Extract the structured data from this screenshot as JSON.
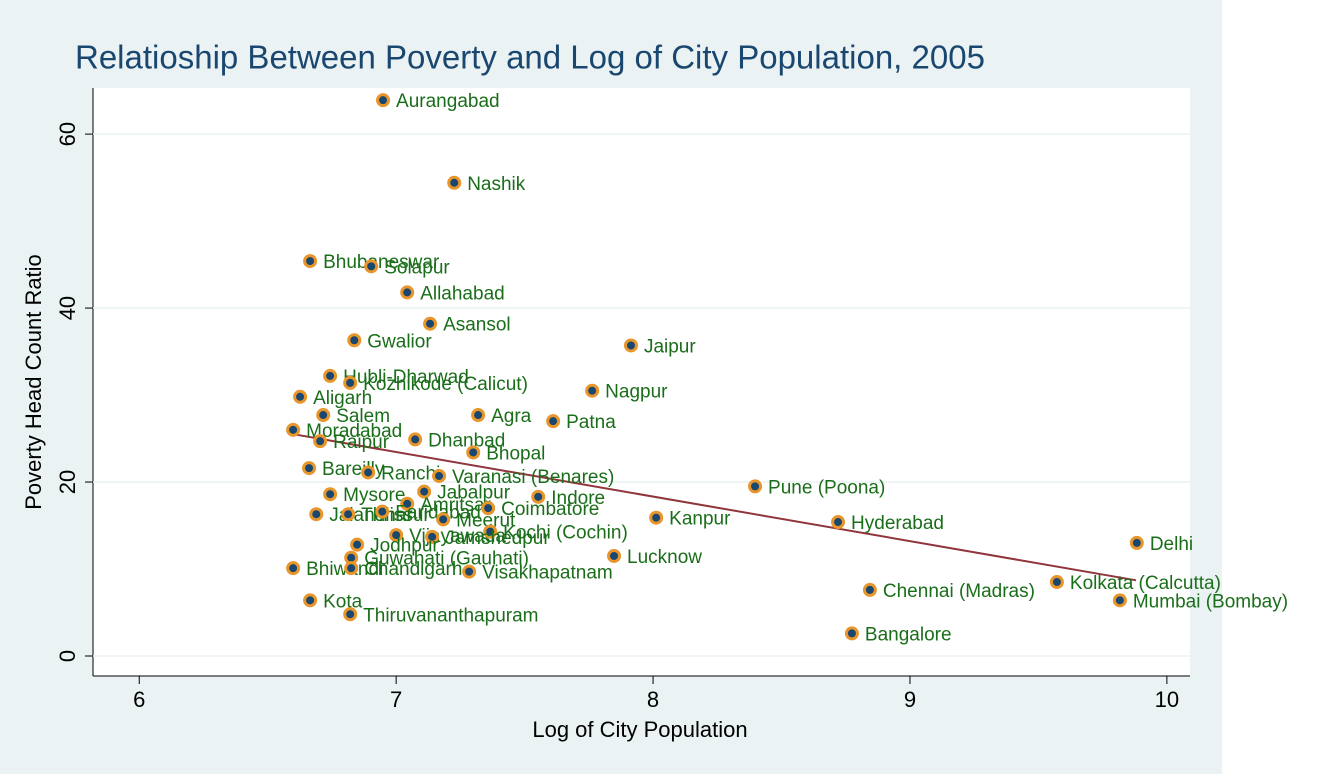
{
  "chart_data": {
    "type": "scatter",
    "title": "Relatioship Between Poverty and Log of City Population, 2005",
    "x_label": "Log of City Population",
    "y_label": "Poverty Head Count Ratio",
    "xlim": [
      5.82,
      10.09
    ],
    "ylim": [
      -2.3,
      65.3
    ],
    "xticks": [
      6,
      7,
      8,
      9,
      10
    ],
    "yticks": [
      0,
      20,
      40,
      60
    ],
    "grid": true,
    "marker_color": "#1a476f",
    "marker_edge_color": "#e8952a",
    "label_color": "#1a6e1a",
    "labels": [
      "Aurangabad",
      "Nashik",
      "Bhubaneswar",
      "Solapur",
      "Allahabad",
      "Asansol",
      "Gwalior",
      "Jaipur",
      "Hubli-Dharwad",
      "Kozhikode (Calicut)",
      "Nagpur",
      "Aligarh",
      "Salem",
      "Agra",
      "Patna",
      "Moradabad",
      "Raipur",
      "Dhanbad",
      "Bhopal",
      "Bareilly",
      "Ranchi",
      "Varanasi (Benares)",
      "Pune (Poona)",
      "Mysore",
      "Jabalpur",
      "Indore",
      "Amritsar",
      "Coimbatore",
      "Jalandhar",
      "Thrissur",
      "Faridabad",
      "Meerut",
      "Kanpur",
      "Hyderabad",
      "Vijayawada",
      "Kochi (Cochin)",
      "Jamshedpur",
      "Jodhpur",
      "Delhi",
      "Guwahati (Gauhati)",
      "Lucknow",
      "Bhiwandi",
      "Chandigarh",
      "Visakhapatnam",
      "Kolkata (Calcutta)",
      "Chennai (Madras)",
      "Mumbai (Bombay)",
      "Kota",
      "Thiruvananthapuram",
      "Bangalore"
    ],
    "x": [
      6.949,
      7.226,
      6.665,
      6.903,
      7.043,
      7.132,
      6.837,
      7.914,
      6.743,
      6.821,
      7.763,
      6.626,
      6.716,
      7.319,
      7.611,
      6.599,
      6.704,
      7.074,
      7.3,
      6.661,
      6.891,
      7.167,
      8.397,
      6.743,
      7.109,
      7.553,
      7.043,
      7.358,
      6.689,
      6.813,
      6.946,
      7.183,
      8.012,
      8.72,
      7.0,
      7.366,
      7.14,
      6.848,
      9.883,
      6.825,
      7.848,
      6.599,
      6.825,
      7.284,
      9.572,
      8.844,
      9.817,
      6.665,
      6.821,
      8.774
    ],
    "y": [
      63.9,
      54.4,
      45.4,
      44.8,
      41.8,
      38.2,
      36.3,
      35.7,
      32.2,
      31.4,
      30.5,
      29.8,
      27.7,
      27.7,
      27.0,
      26.0,
      24.7,
      24.9,
      23.4,
      21.6,
      21.1,
      20.7,
      19.5,
      18.6,
      18.9,
      18.3,
      17.5,
      17.0,
      16.3,
      16.3,
      16.6,
      15.7,
      15.9,
      15.4,
      13.9,
      14.3,
      13.7,
      12.8,
      13.0,
      11.3,
      11.5,
      10.1,
      10.1,
      9.7,
      8.5,
      7.6,
      6.4,
      6.4,
      4.8,
      2.6
    ],
    "fit_line": {
      "x": [
        6.6,
        9.88
      ],
      "y": [
        25.5,
        8.7
      ],
      "color": "#90353b"
    }
  }
}
